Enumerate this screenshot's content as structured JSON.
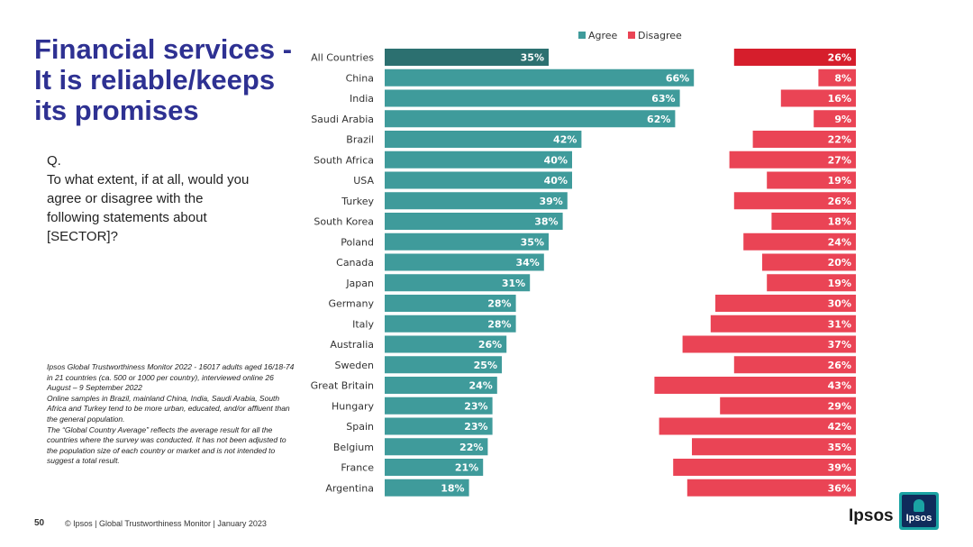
{
  "title": "Financial services - It is reliable/keeps its promises",
  "question": {
    "q": "Q.",
    "text": "To what extent, if at all, would you agree or disagree with the following statements about [SECTOR]?"
  },
  "notes": [
    "Ipsos Global Trustworthiness Monitor 2022 - 16017 adults aged 16/18-74 in 21 countries (ca. 500 or 1000 per country), interviewed online 26 August – 9 September 2022",
    "Online samples in Brazil, mainland China, India, Saudi Arabia, South Africa and Turkey tend to be more urban, educated, and/or affluent than the general population.",
    "The “Global Country Average” reflects the average result for all the countries where the survey was conducted. It has not been adjusted to the population size of each country or market and is not intended to suggest a total result."
  ],
  "footer": {
    "page": "50",
    "copyright": "© Ipsos | Global Trustworthiness Monitor | January 2023"
  },
  "logo": {
    "text": "Ipsos",
    "box_text": "Ipsos"
  },
  "colors": {
    "agree": "#3f9b9b",
    "agree_highlight": "#2c7070",
    "disagree": "#ea4455",
    "disagree_highlight": "#d61e2c"
  },
  "chart_data": {
    "type": "bar",
    "orientation": "horizontal",
    "title": "",
    "legend_position": "top",
    "value_suffix": "%",
    "categories": [
      "All Countries",
      "China",
      "India",
      "Saudi Arabia",
      "Brazil",
      "South Africa",
      "USA",
      "Turkey",
      "South Korea",
      "Poland",
      "Canada",
      "Japan",
      "Germany",
      "Italy",
      "Australia",
      "Sweden",
      "Great Britain",
      "Hungary",
      "Spain",
      "Belgium",
      "France",
      "Argentina"
    ],
    "highlight_category": "All Countries",
    "series": [
      {
        "name": "Agree",
        "values": [
          35,
          66,
          63,
          62,
          42,
          40,
          40,
          39,
          38,
          35,
          34,
          31,
          28,
          28,
          26,
          25,
          24,
          23,
          23,
          22,
          21,
          18
        ]
      },
      {
        "name": "Disagree",
        "values": [
          26,
          8,
          16,
          9,
          22,
          27,
          19,
          26,
          18,
          24,
          20,
          19,
          30,
          31,
          37,
          26,
          43,
          29,
          42,
          35,
          39,
          36
        ]
      }
    ],
    "xlim": [
      0,
      100
    ]
  }
}
